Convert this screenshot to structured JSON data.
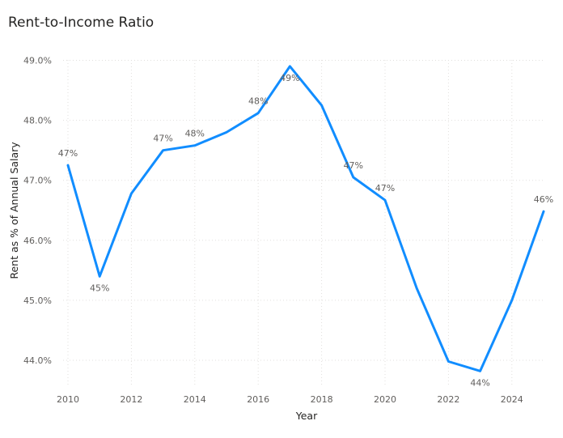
{
  "chart_data": {
    "type": "line",
    "title": "Rent-to-Income Ratio",
    "xlabel": "Year",
    "ylabel": "Rent as % of Annual Salary",
    "xlim": [
      2010,
      2025
    ],
    "ylim": [
      43.6,
      49.1
    ],
    "x_ticks": [
      2010,
      2012,
      2014,
      2016,
      2018,
      2020,
      2022,
      2024
    ],
    "x_tick_labels": [
      "2010",
      "2012",
      "2014",
      "2016",
      "2018",
      "2020",
      "2022",
      "2024"
    ],
    "y_ticks": [
      44.0,
      45.0,
      46.0,
      47.0,
      48.0,
      49.0
    ],
    "y_tick_labels": [
      "44.0%",
      "45.0%",
      "46.0%",
      "47.0%",
      "48.0%",
      "49.0%"
    ],
    "grid": true,
    "color": "#118dff",
    "series": [
      {
        "x": [
          2010,
          2011,
          2012,
          2013,
          2014,
          2015,
          2016,
          2017,
          2018,
          2019,
          2020,
          2021,
          2022,
          2023,
          2024,
          2025
        ],
        "values": [
          47.25,
          45.4,
          46.78,
          47.5,
          47.58,
          47.8,
          48.12,
          48.9,
          48.25,
          47.05,
          46.67,
          45.2,
          43.98,
          43.82,
          45.0,
          46.48
        ]
      }
    ],
    "data_labels": [
      {
        "x": 2010,
        "text": "47%",
        "pos": "above"
      },
      {
        "x": 2011,
        "text": "45%",
        "pos": "below"
      },
      {
        "x": 2013,
        "text": "47%",
        "pos": "above"
      },
      {
        "x": 2014,
        "text": "48%",
        "pos": "above"
      },
      {
        "x": 2016,
        "text": "48%",
        "pos": "above"
      },
      {
        "x": 2017,
        "text": "49%",
        "pos": "below"
      },
      {
        "x": 2019,
        "text": "47%",
        "pos": "above"
      },
      {
        "x": 2020,
        "text": "47%",
        "pos": "above"
      },
      {
        "x": 2023,
        "text": "44%",
        "pos": "below"
      },
      {
        "x": 2025,
        "text": "46%",
        "pos": "above"
      }
    ]
  }
}
